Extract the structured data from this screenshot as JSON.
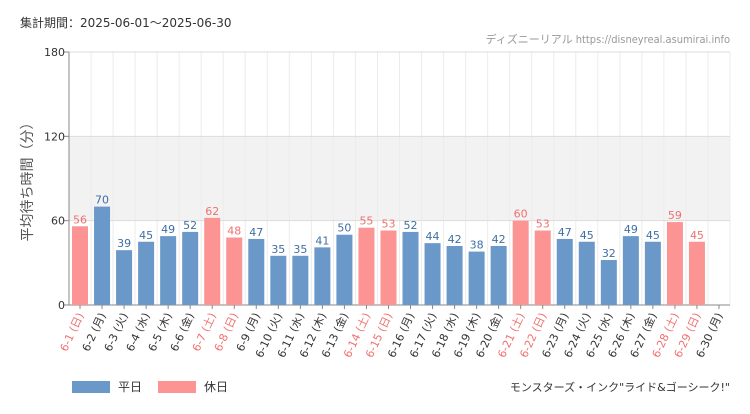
{
  "header": {
    "period": "集計期間：2025-06-01～2025-06-30",
    "source": "ディズニーリアル https://disneyreal.asumirai.info"
  },
  "legend": {
    "weekday": "平日",
    "holiday": "休日"
  },
  "footer": {
    "attraction": "モンスターズ・インク\"ライド&ゴーシーク!\""
  },
  "colors": {
    "weekday": "#6a98c8",
    "holiday": "#fc9494",
    "weekday_label": "#3f6fa3",
    "holiday_label": "#f07070",
    "band": "#f2f2f2"
  },
  "chart_data": {
    "type": "bar",
    "ylabel": "平均待ち時間（分）",
    "ylim": [
      0,
      180
    ],
    "yticks": [
      0,
      60,
      120,
      180
    ],
    "grid": true,
    "legend_position": "bottom-left",
    "categories": [
      "6-1 (日)",
      "6-2 (月)",
      "6-3 (火)",
      "6-4 (水)",
      "6-5 (木)",
      "6-6 (金)",
      "6-7 (土)",
      "6-8 (日)",
      "6-9 (月)",
      "6-10 (火)",
      "6-11 (水)",
      "6-12 (木)",
      "6-13 (金)",
      "6-14 (土)",
      "6-15 (日)",
      "6-16 (月)",
      "6-17 (火)",
      "6-18 (水)",
      "6-19 (木)",
      "6-20 (金)",
      "6-21 (土)",
      "6-22 (日)",
      "6-23 (月)",
      "6-24 (火)",
      "6-25 (水)",
      "6-26 (木)",
      "6-27 (金)",
      "6-28 (土)",
      "6-29 (日)",
      "6-30 (月)"
    ],
    "values": [
      56,
      70,
      39,
      45,
      49,
      52,
      62,
      48,
      47,
      35,
      35,
      41,
      50,
      55,
      53,
      52,
      44,
      42,
      38,
      42,
      60,
      53,
      47,
      45,
      32,
      49,
      45,
      59,
      45,
      null
    ],
    "day_type": [
      "holiday",
      "weekday",
      "weekday",
      "weekday",
      "weekday",
      "weekday",
      "holiday",
      "holiday",
      "weekday",
      "weekday",
      "weekday",
      "weekday",
      "weekday",
      "holiday",
      "holiday",
      "weekday",
      "weekday",
      "weekday",
      "weekday",
      "weekday",
      "holiday",
      "holiday",
      "weekday",
      "weekday",
      "weekday",
      "weekday",
      "weekday",
      "holiday",
      "holiday",
      "weekday"
    ]
  }
}
